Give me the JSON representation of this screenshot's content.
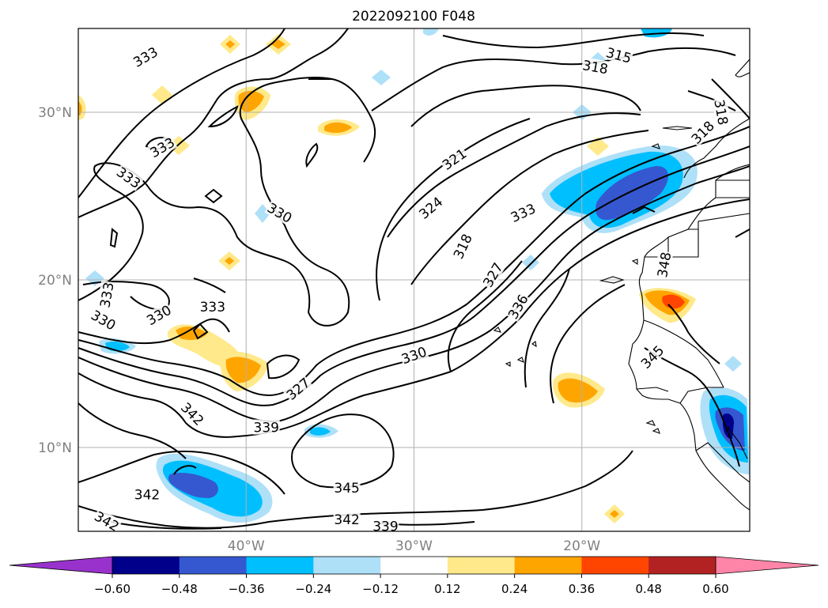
{
  "title": "2022092100 F048",
  "map": {
    "projection": "equirectangular",
    "lon_range": [
      -50,
      -10
    ],
    "lat_range": [
      5,
      35
    ],
    "lat_ticks": [
      {
        "value": 30,
        "label": "30°N"
      },
      {
        "value": 20,
        "label": "20°N"
      },
      {
        "value": 10,
        "label": "10°N"
      }
    ],
    "lon_ticks": [
      {
        "value": -40,
        "label": "40°W"
      },
      {
        "value": -30,
        "label": "30°W"
      },
      {
        "value": -20,
        "label": "20°W"
      }
    ],
    "grid": true,
    "tick_label_color": "#808080"
  },
  "contour_labels": [
    {
      "text": "315",
      "lon": -17.8,
      "lat": 33.4,
      "angle": 15
    },
    {
      "text": "318",
      "lon": -19.2,
      "lat": 32.7,
      "angle": 10
    },
    {
      "text": "318",
      "lon": -11.7,
      "lat": 30.0,
      "angle": 80
    },
    {
      "text": "318",
      "lon": -12.8,
      "lat": 28.8,
      "angle": -45
    },
    {
      "text": "321",
      "lon": -27.6,
      "lat": 27.2,
      "angle": -35
    },
    {
      "text": "324",
      "lon": -29.0,
      "lat": 24.3,
      "angle": -40
    },
    {
      "text": "318",
      "lon": -27.1,
      "lat": 22.0,
      "angle": -65
    },
    {
      "text": "333",
      "lon": -23.5,
      "lat": 24.0,
      "angle": -25
    },
    {
      "text": "327",
      "lon": -25.3,
      "lat": 20.3,
      "angle": -60
    },
    {
      "text": "336",
      "lon": -23.8,
      "lat": 18.4,
      "angle": -60
    },
    {
      "text": "348",
      "lon": -15.1,
      "lat": 20.9,
      "angle": -80
    },
    {
      "text": "345",
      "lon": -15.8,
      "lat": 15.4,
      "angle": -45
    },
    {
      "text": "330",
      "lon": -30.0,
      "lat": 15.5,
      "angle": -20
    },
    {
      "text": "327",
      "lon": -36.9,
      "lat": 13.5,
      "angle": -40
    },
    {
      "text": "339",
      "lon": -38.8,
      "lat": 11.2,
      "angle": 0
    },
    {
      "text": "342",
      "lon": -43.2,
      "lat": 12.0,
      "angle": 45
    },
    {
      "text": "345",
      "lon": -34.0,
      "lat": 7.6,
      "angle": 0
    },
    {
      "text": "342",
      "lon": -45.9,
      "lat": 7.2,
      "angle": 0
    },
    {
      "text": "342",
      "lon": -34.0,
      "lat": 5.7,
      "angle": 0
    },
    {
      "text": "339",
      "lon": -31.7,
      "lat": 5.3,
      "angle": 0
    },
    {
      "text": "342",
      "lon": -48.3,
      "lat": 5.6,
      "angle": 30
    },
    {
      "text": "333",
      "lon": -46.0,
      "lat": 33.3,
      "angle": -30
    },
    {
      "text": "333",
      "lon": -45.0,
      "lat": 27.9,
      "angle": -30
    },
    {
      "text": "333",
      "lon": -47.0,
      "lat": 26.1,
      "angle": 35
    },
    {
      "text": "330",
      "lon": -38.0,
      "lat": 24.0,
      "angle": 30
    },
    {
      "text": "333",
      "lon": -48.3,
      "lat": 19.1,
      "angle": -80
    },
    {
      "text": "330",
      "lon": -48.5,
      "lat": 17.6,
      "angle": 30
    },
    {
      "text": "330",
      "lon": -45.2,
      "lat": 17.9,
      "angle": -30
    },
    {
      "text": "333",
      "lon": -42.0,
      "lat": 18.4,
      "angle": 0
    }
  ],
  "colorbar": {
    "ticks": [
      "−0.60",
      "−0.48",
      "−0.36",
      "−0.24",
      "−0.12",
      "0.12",
      "0.24",
      "0.36",
      "0.48",
      "0.60"
    ],
    "under_color": "#9932cc",
    "over_color": "#ff85a8",
    "colors": [
      "#00008b",
      "#3558d0",
      "#00bfff",
      "#aee0f8",
      "#ffffff",
      "#ffe98a",
      "#ffa500",
      "#ff4500",
      "#b22222"
    ]
  }
}
